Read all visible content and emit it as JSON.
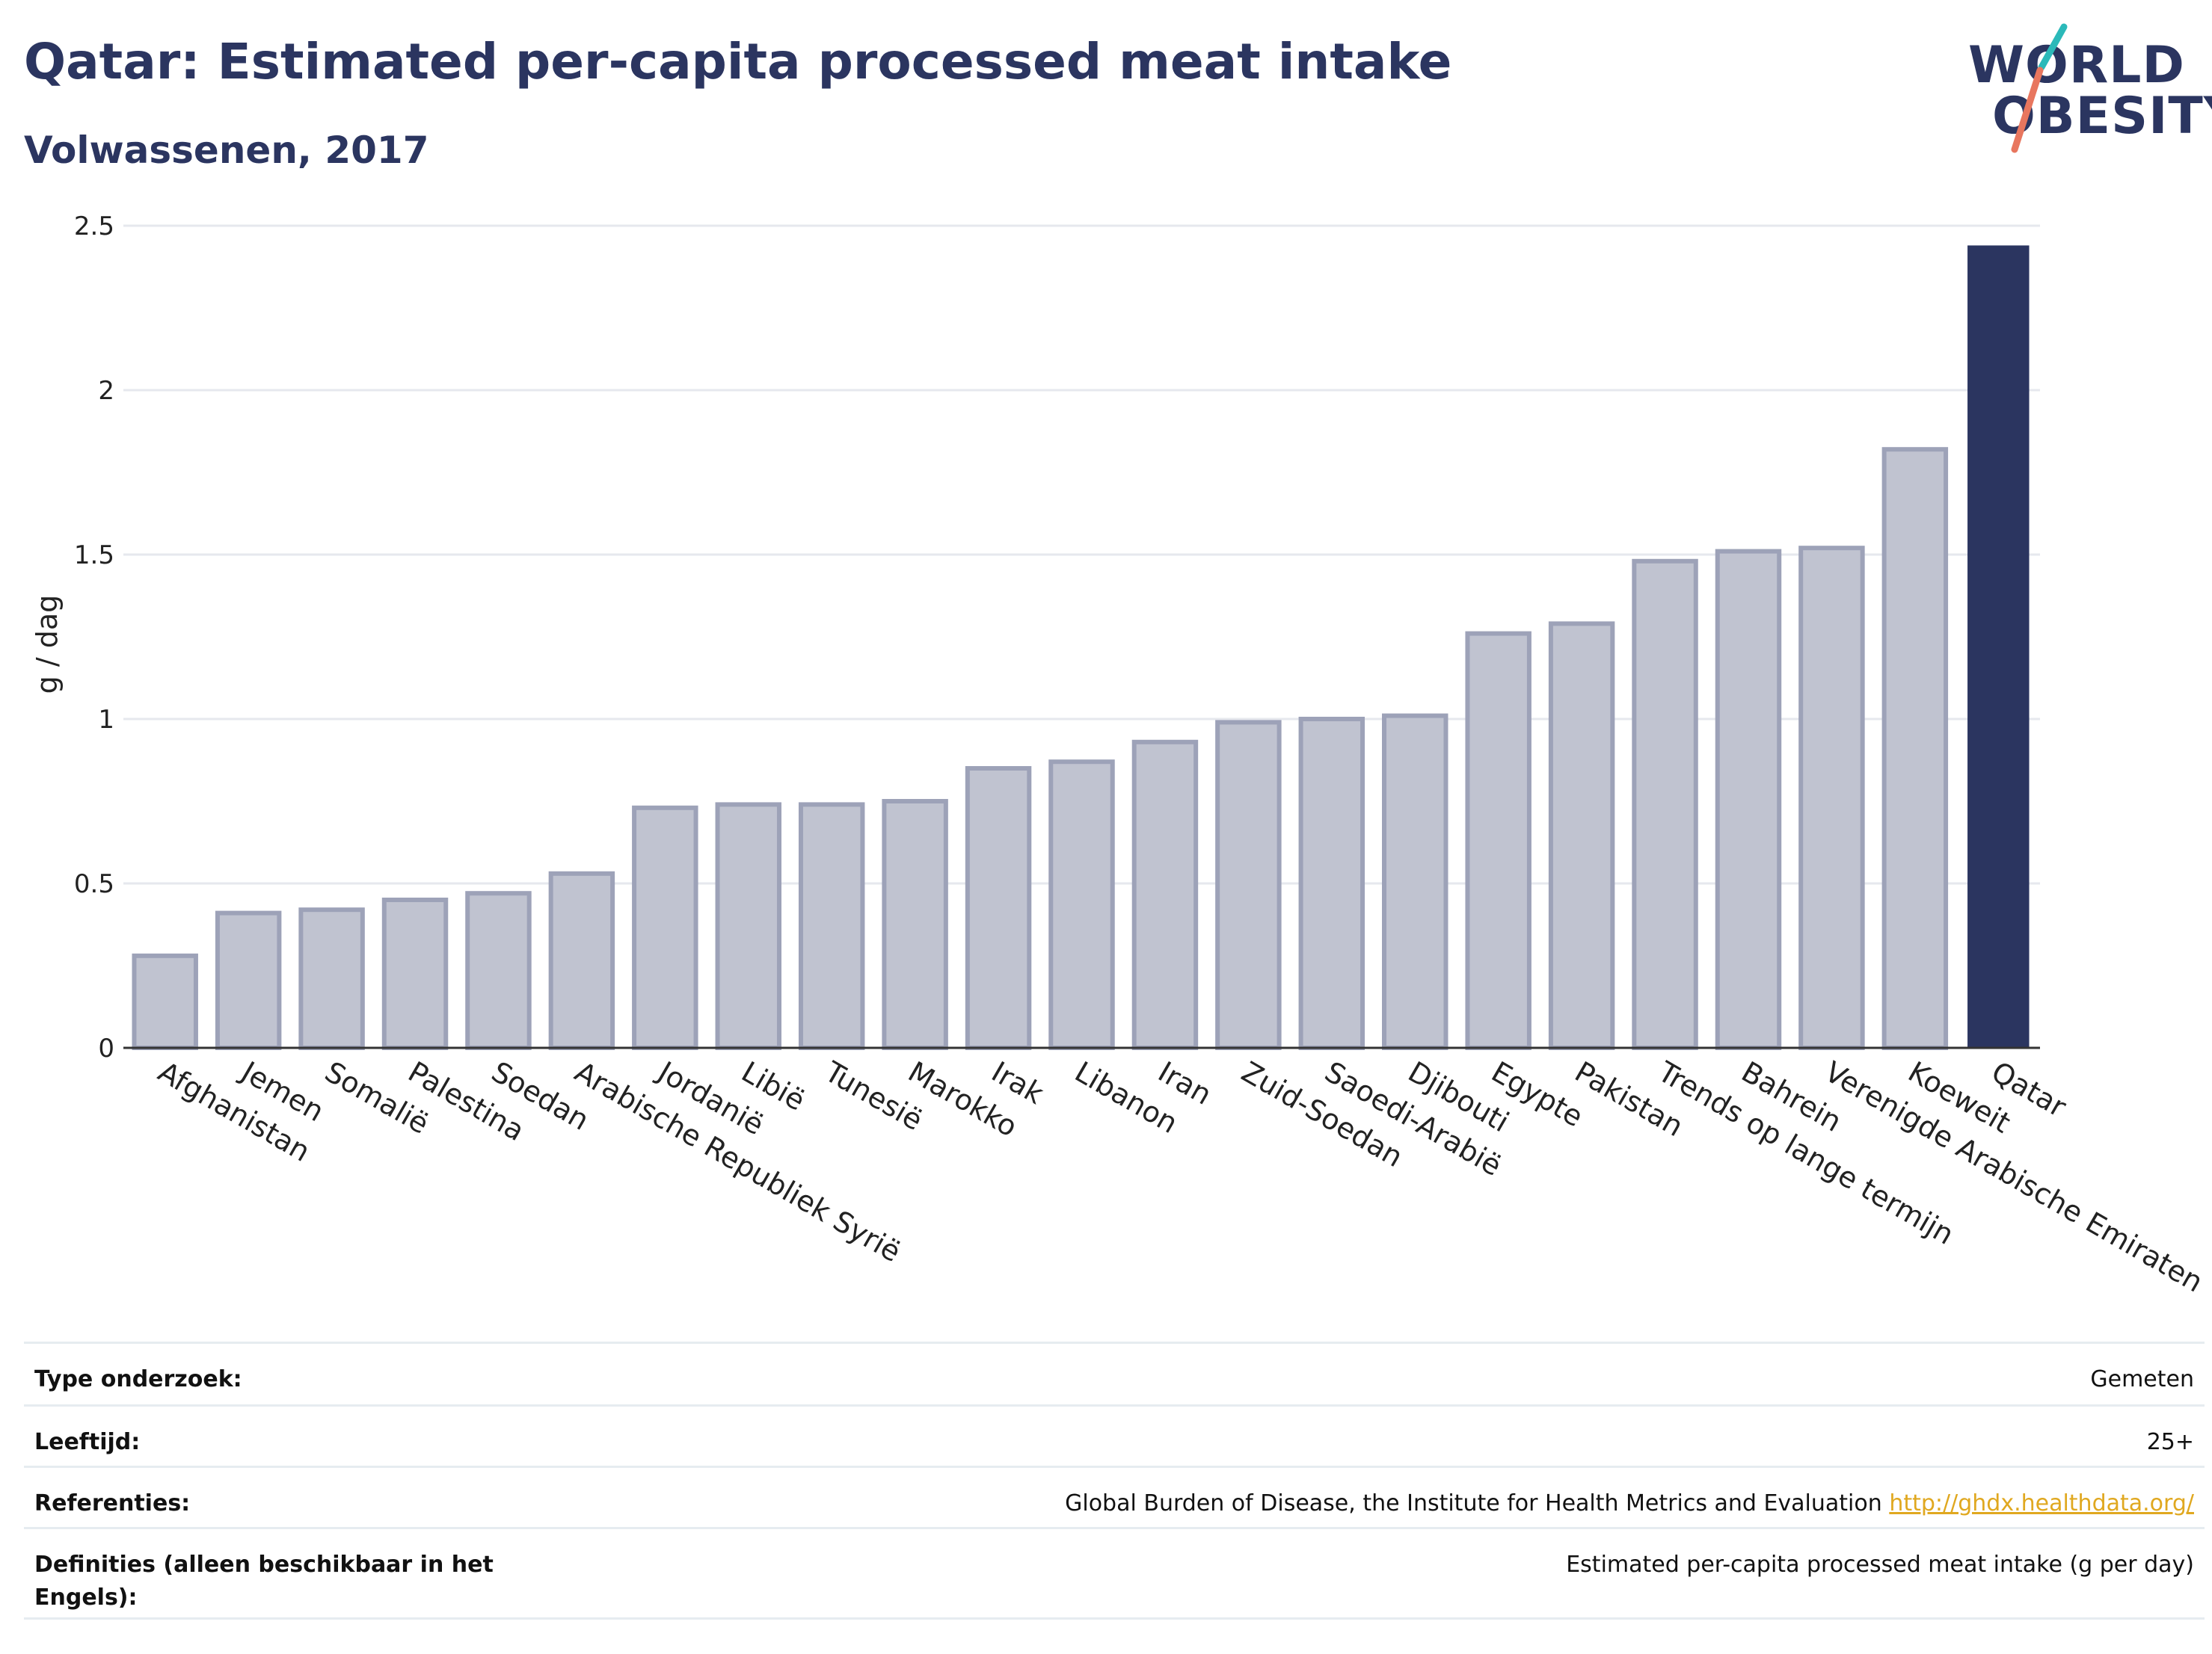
{
  "header": {
    "title": "Qatar: Estimated per-capita processed meat intake",
    "subtitle": "Volwassenen, 2017"
  },
  "logo": {
    "line1": "WORLD",
    "line2": "OBESITY"
  },
  "colors": {
    "highlight": "#2b3560",
    "bar_fill": "#c0c3d0",
    "bar_stroke": "#9da2b8",
    "grid": "#e6e8ee"
  },
  "chart_data": {
    "type": "bar",
    "title": "Qatar: Estimated per-capita processed meat intake",
    "subtitle": "Volwassenen, 2017",
    "xlabel": "",
    "ylabel": "g / dag",
    "ylim": [
      0,
      2.5
    ],
    "yticks": [
      0,
      0.5,
      1,
      1.5,
      2,
      2.5
    ],
    "ytick_labels": [
      "0",
      "0.5",
      "1",
      "1.5",
      "2",
      "2.5"
    ],
    "grid": true,
    "highlight": "Qatar",
    "categories": [
      "Afghanistan",
      "Jemen",
      "Somalië",
      "Palestina",
      "Soedan",
      "Arabische Republiek Syrië",
      "Jordanië",
      "Libië",
      "Tunesië",
      "Marokko",
      "Irak",
      "Libanon",
      "Iran",
      "Zuid-Soedan",
      "Saoedi-Arabië",
      "Djibouti",
      "Egypte",
      "Pakistan",
      "Trends op lange termijn",
      "Bahrein",
      "Verenigde Arabische Emiraten",
      "Koeweit",
      "Qatar"
    ],
    "values": [
      0.28,
      0.41,
      0.42,
      0.45,
      0.47,
      0.53,
      0.73,
      0.74,
      0.74,
      0.75,
      0.85,
      0.87,
      0.93,
      0.99,
      1.0,
      1.01,
      1.26,
      1.29,
      1.48,
      1.51,
      1.52,
      1.82,
      2.44
    ]
  },
  "info": [
    {
      "key": "Type onderzoek:",
      "value": "Gemeten"
    },
    {
      "key": "Leeftijd:",
      "value": "25+"
    },
    {
      "key": "Referenties:",
      "value": "Global Burden of Disease, the Institute for Health Metrics and Evaluation",
      "link": "http://ghdx.healthdata.org/"
    },
    {
      "key": "Definities (alleen beschikbaar in het Engels):",
      "value": "Estimated per-capita processed meat intake (g per day)"
    }
  ]
}
